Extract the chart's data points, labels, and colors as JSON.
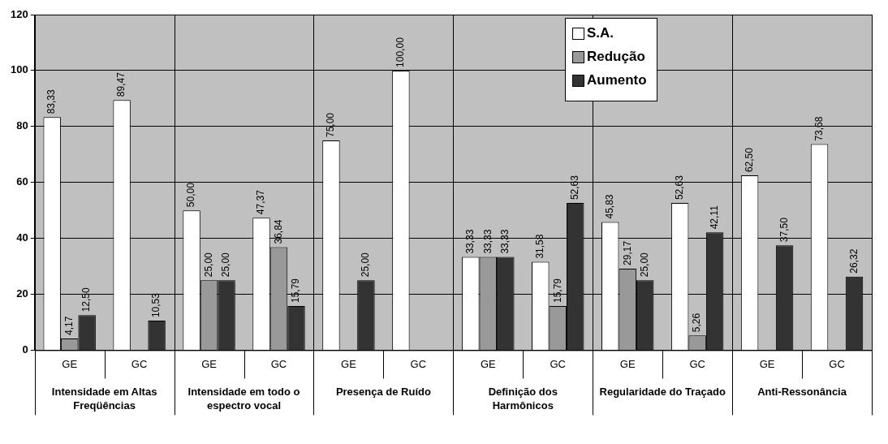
{
  "chart_data": {
    "type": "bar",
    "categories": [
      "GE",
      "GC",
      "GE",
      "GC",
      "GE",
      "GC",
      "GE",
      "GC",
      "GE",
      "GC",
      "GE",
      "GC"
    ],
    "series": [
      {
        "name": "S.A.",
        "color": "#ffffff",
        "values": [
          83.33,
          89.47,
          50.0,
          47.37,
          75.0,
          100.0,
          33.33,
          31.58,
          45.83,
          52.63,
          62.5,
          73.68
        ],
        "value_labels": [
          "83,33",
          "89,47",
          "50,00",
          "47,37",
          "75,00",
          "100,00",
          "33,33",
          "31,58",
          "45,83",
          "52,63",
          "62,50",
          "73,68"
        ]
      },
      {
        "name": "Redução",
        "color": "#999999",
        "values": [
          4.17,
          null,
          25.0,
          36.84,
          null,
          null,
          33.33,
          15.79,
          29.17,
          5.26,
          null,
          null
        ],
        "value_labels": [
          "4,17",
          null,
          "25,00",
          "36,84",
          null,
          null,
          "33,33",
          "15,79",
          "29,17",
          "5,26",
          null,
          null
        ]
      },
      {
        "name": "Aumento",
        "color": "#333333",
        "values": [
          12.5,
          10.53,
          25.0,
          15.79,
          25.0,
          null,
          33.33,
          52.63,
          25.0,
          42.11,
          37.5,
          26.32
        ],
        "value_labels": [
          "12,50",
          "10,53",
          "25,00",
          "15,79",
          "25,00",
          null,
          "33,33",
          "52,63",
          "25,00",
          "42,11",
          "37,50",
          "26,32"
        ]
      }
    ],
    "annotations": [
      "Intensidade em Altas Freqüências",
      "Intensidade em todo o espectro vocal",
      "Presença de Ruído",
      "Definição dos Harmônicos",
      "Regularidade do Traçado",
      "Anti-Ressonância"
    ],
    "ylim": [
      0,
      120
    ],
    "yticks": [
      0,
      20,
      40,
      60,
      80,
      100,
      120
    ],
    "grid": "y",
    "legend": "top right"
  }
}
